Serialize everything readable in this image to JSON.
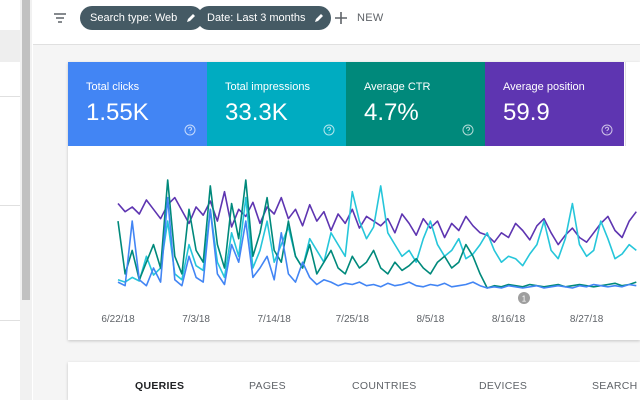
{
  "toolbar": {
    "chips": [
      "Search type: Web",
      "Date: Last 3 months"
    ],
    "new_button": "NEW"
  },
  "metrics": [
    {
      "label": "Total clicks",
      "value": "1.55K",
      "color": "#4285f4"
    },
    {
      "label": "Total impressions",
      "value": "33.3K",
      "color": "#00acc1"
    },
    {
      "label": "Average CTR",
      "value": "4.7%",
      "color": "#00897b"
    },
    {
      "label": "Average position",
      "value": "59.9",
      "color": "#5e35b1"
    }
  ],
  "chart_data": {
    "type": "line",
    "annotation": "1",
    "categories": [
      "6/22/18",
      null,
      null,
      null,
      null,
      null,
      null,
      null,
      null,
      null,
      null,
      "7/3/18",
      null,
      null,
      null,
      null,
      null,
      null,
      null,
      null,
      null,
      null,
      "7/14/18",
      null,
      null,
      null,
      null,
      null,
      null,
      null,
      null,
      null,
      null,
      "7/25/18",
      null,
      null,
      null,
      null,
      null,
      null,
      null,
      null,
      null,
      null,
      "8/5/18",
      null,
      null,
      null,
      null,
      null,
      null,
      null,
      null,
      null,
      null,
      "8/16/18",
      null,
      null,
      null,
      null,
      null,
      null,
      null,
      null,
      null,
      null,
      "8/27/18",
      null,
      null,
      null,
      null,
      null,
      null,
      null
    ],
    "series": [
      {
        "color": "#5e35b1",
        "values": [
          75,
          68,
          72,
          66,
          78,
          70,
          62,
          74,
          80,
          69,
          58,
          72,
          65,
          77,
          60,
          85,
          55,
          70,
          64,
          76,
          58,
          72,
          66,
          80,
          62,
          70,
          56,
          74,
          60,
          68,
          52,
          66,
          58,
          70,
          54,
          64,
          60,
          56,
          62,
          50,
          66,
          58,
          48,
          62,
          54,
          60,
          46,
          58,
          52,
          64,
          56,
          50,
          48,
          42,
          50,
          46,
          58,
          52,
          44,
          56,
          62,
          50,
          40,
          48,
          54,
          46,
          42,
          50,
          58,
          64,
          52,
          46,
          60,
          68
        ]
      },
      {
        "color": "#26c6da",
        "values": [
          10,
          8,
          12,
          9,
          30,
          14,
          20,
          60,
          15,
          10,
          40,
          22,
          18,
          70,
          25,
          12,
          50,
          30,
          80,
          20,
          35,
          60,
          25,
          40,
          55,
          30,
          20,
          45,
          35,
          25,
          50,
          40,
          30,
          85,
          60,
          45,
          55,
          90,
          50,
          40,
          30,
          35,
          25,
          45,
          60,
          40,
          30,
          35,
          45,
          28,
          32,
          40,
          50,
          35,
          25,
          30,
          28,
          22,
          32,
          40,
          60,
          35,
          28,
          45,
          75,
          40,
          30,
          35,
          60,
          45,
          28,
          32,
          40,
          35
        ]
      },
      {
        "color": "#00897b",
        "values": [
          60,
          15,
          35,
          10,
          25,
          40,
          20,
          95,
          30,
          15,
          70,
          35,
          25,
          90,
          40,
          20,
          75,
          45,
          95,
          30,
          50,
          80,
          35,
          25,
          60,
          30,
          20,
          40,
          15,
          25,
          35,
          20,
          15,
          30,
          20,
          25,
          35,
          20,
          15,
          25,
          18,
          22,
          28,
          20,
          15,
          25,
          30,
          20,
          25,
          40,
          30,
          15,
          3,
          5,
          4,
          6,
          5,
          4,
          6,
          5,
          4,
          5,
          6,
          4,
          5,
          6,
          5,
          4,
          5,
          6,
          7,
          5,
          6,
          8
        ]
      },
      {
        "color": "#4285f4",
        "values": [
          8,
          5,
          60,
          10,
          5,
          20,
          8,
          80,
          10,
          5,
          30,
          12,
          8,
          70,
          15,
          6,
          40,
          25,
          60,
          12,
          20,
          30,
          10,
          50,
          15,
          8,
          25,
          12,
          6,
          10,
          8,
          5,
          7,
          6,
          8,
          5,
          6,
          4,
          7,
          5,
          6,
          8,
          5,
          4,
          6,
          5,
          7,
          4,
          5,
          6,
          8,
          5,
          3,
          4,
          3,
          5,
          4,
          3,
          4,
          5,
          3,
          4,
          5,
          4,
          3,
          5,
          4,
          6,
          5,
          4,
          5,
          4,
          6,
          5
        ]
      }
    ]
  },
  "tabs": [
    "QUERIES",
    "PAGES",
    "COUNTRIES",
    "DEVICES",
    "SEARCH A"
  ]
}
